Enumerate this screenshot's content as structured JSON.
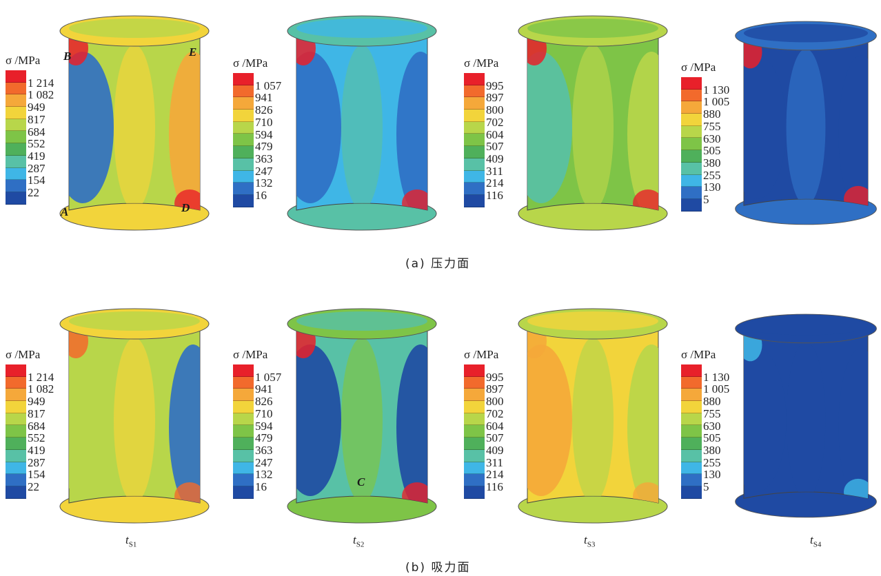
{
  "legend_title": "σ /MPa",
  "legend_colors": [
    "#e8202a",
    "#f26a2c",
    "#f5a83a",
    "#f2d43b",
    "#b8d64a",
    "#7ec447",
    "#4fb05b",
    "#58c1a6",
    "#3fb6e6",
    "#2f6fc4",
    "#1f4aa3"
  ],
  "legends": [
    [
      "1 214",
      "1 082",
      "949",
      "817",
      "684",
      "552",
      "419",
      "287",
      "154",
      "22"
    ],
    [
      "1 057",
      "941",
      "826",
      "710",
      "594",
      "479",
      "363",
      "247",
      "132",
      "16"
    ],
    [
      "995",
      "897",
      "800",
      "702",
      "604",
      "507",
      "409",
      "311",
      "214",
      "116"
    ],
    [
      "1 130",
      "1 005",
      "880",
      "755",
      "630",
      "505",
      "380",
      "255",
      "130",
      "5"
    ]
  ],
  "point_labels": {
    "A": "A",
    "B": "B",
    "C": "C",
    "D": "D",
    "E": "E"
  },
  "captions": {
    "a": "(a) 压力面",
    "b": "(b) 吸力面"
  },
  "time_labels": [
    {
      "base": "t",
      "sub": "S1"
    },
    {
      "base": "t",
      "sub": "S2"
    },
    {
      "base": "t",
      "sub": "S3"
    },
    {
      "base": "t",
      "sub": "S4"
    }
  ],
  "blade_colors": {
    "a1": {
      "base": "#b8d64a",
      "left": "#2f6fc4",
      "right": "#f5a83a",
      "accent": "#e8202a",
      "mid": "#f2d43b"
    },
    "a2": {
      "base": "#3fb6e6",
      "left": "#2f6fc4",
      "right": "#2f6fc4",
      "accent": "#e8202a",
      "mid": "#58c1a6"
    },
    "a3": {
      "base": "#7ec447",
      "left": "#58c1a6",
      "right": "#b8d64a",
      "accent": "#e8202a",
      "mid": "#b8d64a"
    },
    "a4": {
      "base": "#1f4aa3",
      "left": "#1f4aa3",
      "right": "#1f4aa3",
      "accent": "#e8202a",
      "mid": "#2f6fc4"
    },
    "b1": {
      "base": "#b8d64a",
      "left": "#b8d64a",
      "right": "#2f6fc4",
      "accent": "#f26a2c",
      "mid": "#f2d43b"
    },
    "b2": {
      "base": "#58c1a6",
      "left": "#1f4aa3",
      "right": "#1f4aa3",
      "accent": "#e8202a",
      "mid": "#7ec447"
    },
    "b3": {
      "base": "#f2d43b",
      "left": "#f5a83a",
      "right": "#b8d64a",
      "accent": "#f5a83a",
      "mid": "#b8d64a"
    },
    "b4": {
      "base": "#1f4aa3",
      "left": "#1f4aa3",
      "right": "#1f4aa3",
      "accent": "#3fb6e6",
      "mid": "#1f4aa3"
    }
  }
}
